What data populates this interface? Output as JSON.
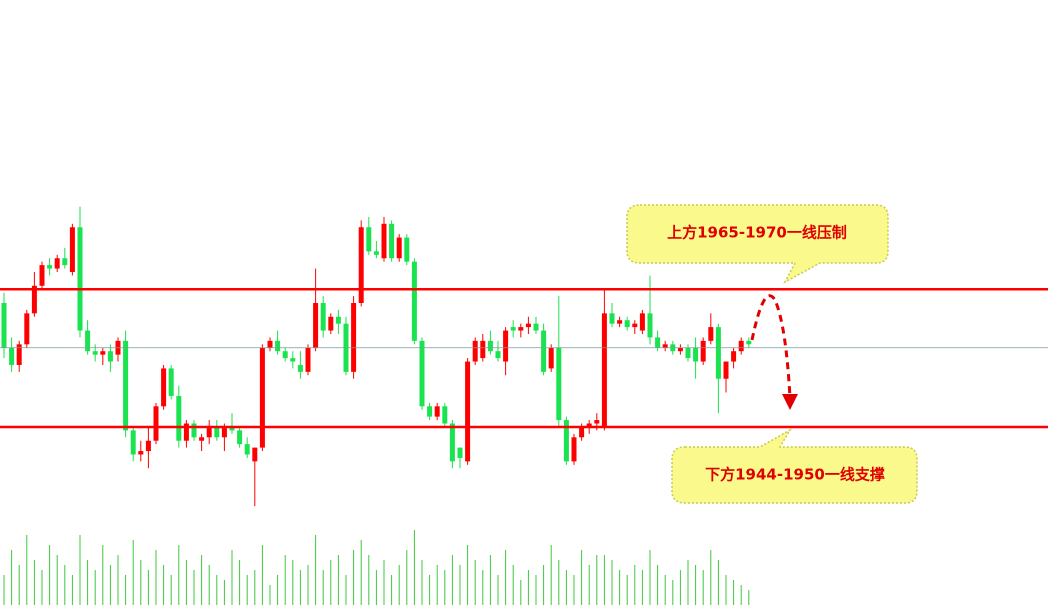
{
  "chart_data": {
    "type": "candlestick",
    "up_color": "#ff0000",
    "down_color": "#19e34f",
    "volume_color": "#3cc83c",
    "ylim": [
      1921,
      2009
    ],
    "volume_ylim": [
      0,
      80
    ],
    "reference_lines": [
      {
        "value": 1967,
        "color": "#ff0000"
      },
      {
        "value": 1947,
        "color": "#ff0000"
      },
      {
        "value": 1958.5,
        "color": "#7a9a9a"
      }
    ],
    "annotations": [
      "上方1965-1970一线压制",
      "下方1944-1950一线支撑"
    ],
    "open": [
      1965,
      1958.5,
      1956,
      1959,
      1963.5,
      1967.5,
      1970.5,
      1970,
      1971.5,
      1969.5,
      1976,
      1961,
      1958,
      1957.5,
      1958,
      1957.5,
      1959.5,
      1946.5,
      1943,
      1943.5,
      1945,
      1950,
      1955.5,
      1951.5,
      1945,
      1947.5,
      1945,
      1945.5,
      1947,
      1945.5,
      1947,
      1946.5,
      1944.5,
      1942,
      1944,
      1958.5,
      1959.5,
      1958,
      1957,
      1956,
      1955,
      1958.5,
      1965,
      1961,
      1963,
      1962,
      1955,
      1965,
      1976,
      1972.5,
      1971.5,
      1976.5,
      1971.5,
      1974.5,
      1971,
      1959.5,
      1950,
      1948.5,
      1950,
      1947.5,
      1944,
      1942,
      1956.5,
      1957,
      1959.5,
      1958,
      1956.5,
      1961.5,
      1961,
      1961.5,
      1962,
      1961,
      1955.5,
      1958.5,
      1948,
      1942,
      1945.5,
      1947,
      1947.5,
      1947,
      1963.5,
      1962,
      1962.5,
      1961.5,
      1961,
      1963.5,
      1960,
      1958.5,
      1959,
      1958,
      1958.5,
      1958.5,
      1956.5,
      1959.5,
      1961.5,
      1954,
      1956.5,
      1958,
      1959.5
    ],
    "high": [
      1966.5,
      1960,
      1959.5,
      1964,
      1969.5,
      1971,
      1971.5,
      1972,
      1973,
      1976.5,
      1979,
      1962.5,
      1959,
      1958.5,
      1959,
      1960,
      1961,
      1947,
      1945,
      1947,
      1950.5,
      1956,
      1956,
      1953,
      1948,
      1948,
      1946,
      1948,
      1948,
      1947.5,
      1949,
      1947,
      1945.5,
      1944,
      1959,
      1960,
      1961,
      1958.5,
      1958,
      1958,
      1959,
      1970,
      1966,
      1963.5,
      1964,
      1963,
      1966,
      1977,
      1977.5,
      1974,
      1977.5,
      1977,
      1975,
      1975,
      1971.5,
      1960,
      1950.5,
      1950.5,
      1950.5,
      1948,
      1944,
      1957,
      1960,
      1960.5,
      1961,
      1959.5,
      1961.5,
      1962.5,
      1962,
      1963,
      1963,
      1962,
      1959,
      1966,
      1948.5,
      1946,
      1947.5,
      1948,
      1949,
      1967,
      1965,
      1963,
      1963,
      1962.5,
      1964,
      1969,
      1961,
      1959.5,
      1959.5,
      1959,
      1959,
      1960,
      1960,
      1963.5,
      1962,
      1956.5,
      1958.5,
      1960,
      1960
    ],
    "low": [
      1957,
      1955,
      1955,
      1958.5,
      1963,
      1967,
      1969,
      1969.5,
      1970,
      1969,
      1960,
      1957.5,
      1956.5,
      1956,
      1955,
      1956.5,
      1945.5,
      1942,
      1942,
      1941,
      1944.5,
      1949.5,
      1951,
      1944,
      1944,
      1945,
      1943.5,
      1944.5,
      1945,
      1943.5,
      1946,
      1944,
      1942.5,
      1935.5,
      1943.5,
      1958,
      1957.5,
      1956.5,
      1955.5,
      1954,
      1954.5,
      1958,
      1960,
      1960.5,
      1960.5,
      1954.5,
      1954,
      1964.5,
      1972,
      1971.5,
      1971,
      1971,
      1971,
      1970.5,
      1959,
      1949.5,
      1948,
      1948,
      1947,
      1941,
      1941,
      1941.5,
      1956,
      1956.5,
      1957.5,
      1956.5,
      1954.5,
      1960,
      1960,
      1960.5,
      1960.5,
      1954.5,
      1955,
      1947,
      1941.5,
      1941.5,
      1945,
      1946,
      1946.5,
      1946.5,
      1961.5,
      1961.5,
      1961,
      1960.5,
      1960.5,
      1959,
      1958,
      1958,
      1957.5,
      1957.5,
      1956.5,
      1954,
      1956,
      1959,
      1949,
      1952,
      1955.5,
      1957.5,
      1958.5
    ],
    "close": [
      1958.5,
      1956,
      1959,
      1963.5,
      1967.5,
      1970.5,
      1970,
      1971.5,
      1970.5,
      1976,
      1961,
      1958,
      1957.5,
      1958,
      1956.5,
      1959.5,
      1946.5,
      1943,
      1943.5,
      1945,
      1950,
      1955.5,
      1951.5,
      1945,
      1947.5,
      1945.5,
      1945.5,
      1947,
      1945.5,
      1947,
      1946.5,
      1944.5,
      1943,
      1944,
      1958.5,
      1959.5,
      1958,
      1957,
      1956.5,
      1955,
      1958.5,
      1965,
      1961,
      1963,
      1962,
      1955,
      1965,
      1976,
      1972.5,
      1972,
      1976.5,
      1971.5,
      1974.5,
      1971,
      1959.5,
      1950,
      1948.5,
      1950,
      1947.5,
      1942,
      1942.5,
      1956.5,
      1959.5,
      1959.5,
      1958,
      1957,
      1961,
      1961,
      1961.5,
      1962,
      1961,
      1955,
      1958.5,
      1948,
      1942,
      1945.5,
      1947,
      1947.5,
      1948,
      1963.5,
      1962,
      1962.5,
      1961.5,
      1962,
      1963.5,
      1960,
      1958.5,
      1959,
      1958,
      1958.5,
      1957,
      1956.5,
      1959.5,
      1961.5,
      1954,
      1956.5,
      1958,
      1959.5,
      1959
    ],
    "volume": [
      30,
      55,
      40,
      70,
      45,
      35,
      60,
      50,
      40,
      30,
      70,
      45,
      35,
      60,
      40,
      50,
      30,
      65,
      45,
      35,
      55,
      40,
      30,
      60,
      45,
      35,
      50,
      40,
      30,
      25,
      55,
      45,
      30,
      35,
      60,
      20,
      30,
      50,
      45,
      35,
      40,
      70,
      35,
      45,
      50,
      30,
      55,
      65,
      50,
      35,
      45,
      30,
      40,
      55,
      75,
      45,
      30,
      40,
      35,
      50,
      40,
      60,
      45,
      35,
      50,
      30,
      55,
      40,
      25,
      35,
      30,
      40,
      60,
      45,
      35,
      30,
      55,
      40,
      50,
      50,
      45,
      35,
      30,
      40,
      35,
      55,
      40,
      30,
      25,
      35,
      45,
      40,
      35,
      55,
      45,
      30,
      25,
      20,
      15
    ]
  }
}
